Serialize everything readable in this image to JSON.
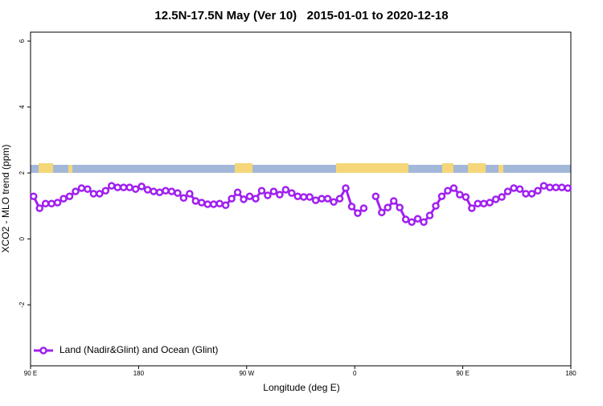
{
  "chart_data": {
    "type": "line",
    "title": "12.5N-17.5N May (Ver 10)   2015-01-01 to 2020-12-18",
    "x_label": "Longitude (deg E)",
    "y_label": "XCO2 - MLO trend (ppm)",
    "x": [
      92.5,
      97.5,
      102.5,
      107.5,
      112.5,
      117.5,
      122.5,
      127.5,
      132.5,
      137.5,
      142.5,
      147.5,
      152.5,
      157.5,
      162.5,
      167.5,
      172.5,
      177.5,
      182.5,
      187.5,
      192.5,
      197.5,
      202.5,
      207.5,
      212.5,
      217.5,
      222.5,
      227.5,
      232.5,
      237.5,
      242.5,
      247.5,
      252.5,
      257.5,
      262.5,
      267.5,
      272.5,
      277.5,
      282.5,
      287.5,
      292.5,
      297.5,
      302.5,
      307.5,
      312.5,
      317.5,
      322.5,
      327.5,
      332.5,
      337.5,
      342.5,
      347.5,
      352.5,
      357.5,
      362.5,
      367.5,
      372.5,
      377.5,
      382.5,
      387.5,
      392.5,
      397.5,
      402.5,
      407.5,
      412.5,
      417.5,
      422.5,
      427.5,
      432.5,
      437.5,
      442.5,
      447.5,
      452.5,
      457.5,
      462.5,
      467.5,
      472.5,
      477.5,
      482.5,
      487.5,
      492.5,
      497.5,
      502.5,
      507.5,
      512.5,
      517.5,
      522.5,
      527.5,
      532.5,
      537.5
    ],
    "series": [
      {
        "name": "Land (Nadir&Glint) and Ocean (Glint)",
        "color": "#a020f0",
        "values": [
          1.29,
          0.93,
          1.07,
          1.07,
          1.1,
          1.22,
          1.29,
          1.44,
          1.54,
          1.51,
          1.37,
          1.37,
          1.46,
          1.61,
          1.56,
          1.56,
          1.56,
          1.51,
          1.59,
          1.49,
          1.44,
          1.41,
          1.46,
          1.44,
          1.39,
          1.24,
          1.37,
          1.15,
          1.1,
          1.05,
          1.05,
          1.07,
          1.02,
          1.22,
          1.41,
          1.2,
          1.29,
          1.22,
          1.46,
          1.32,
          1.44,
          1.34,
          1.49,
          1.39,
          1.29,
          1.27,
          1.27,
          1.17,
          1.22,
          1.22,
          1.12,
          1.22,
          1.54,
          0.98,
          0.78,
          0.93,
          null,
          1.29,
          0.8,
          0.95,
          1.15,
          0.95,
          0.59,
          0.51,
          0.61,
          0.51,
          0.71,
          1.0,
          1.29,
          1.46,
          1.54,
          1.34,
          1.27,
          0.93,
          1.07,
          1.07,
          1.1,
          1.2,
          1.27,
          1.44,
          1.54,
          1.51,
          1.37,
          1.37,
          1.46,
          1.61,
          1.56,
          1.56,
          1.56,
          1.54
        ]
      }
    ],
    "xlim": [
      90,
      540
    ],
    "xticks": [
      {
        "value": 90,
        "label": "90 E"
      },
      180,
      {
        "value": 270,
        "label": "90 W"
      },
      {
        "value": 360,
        "label": "0"
      },
      {
        "value": 450,
        "label": "90 E"
      },
      {
        "value": 540,
        "label": "180"
      }
    ],
    "ylim": [
      -3.85,
      6.27
    ],
    "yticks": [
      -2,
      0,
      2,
      4,
      6
    ],
    "legend": "bottom-left"
  }
}
